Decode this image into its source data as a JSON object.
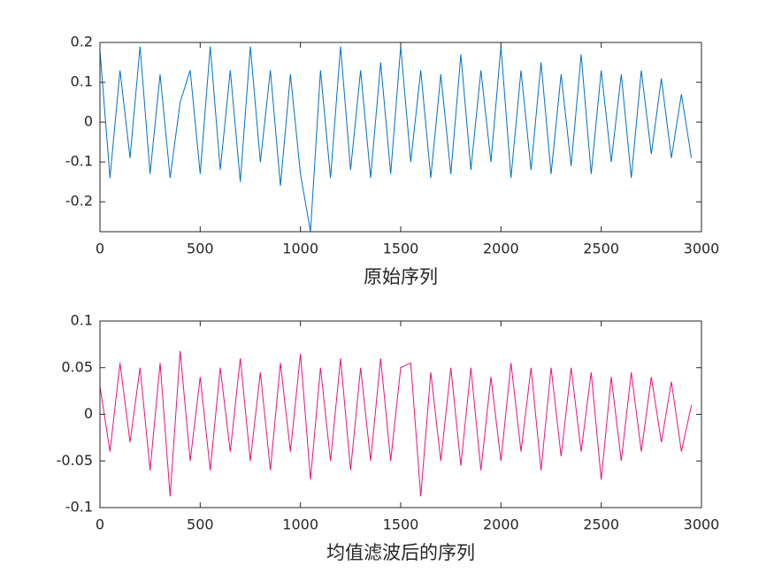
{
  "chart_data": [
    {
      "type": "line",
      "xlabel": "原始序列",
      "x": [
        0,
        50,
        100,
        150,
        200,
        250,
        300,
        350,
        400,
        450,
        500,
        550,
        600,
        650,
        700,
        750,
        800,
        850,
        900,
        950,
        1000,
        1050,
        1100,
        1150,
        1200,
        1250,
        1300,
        1350,
        1400,
        1450,
        1500,
        1550,
        1600,
        1650,
        1700,
        1750,
        1800,
        1850,
        1900,
        1950,
        2000,
        2050,
        2100,
        2150,
        2200,
        2250,
        2300,
        2350,
        2400,
        2450,
        2500,
        2550,
        2600,
        2650,
        2700,
        2750,
        2800,
        2850,
        2900,
        2950
      ],
      "series": [
        {
          "color": "#0072bd",
          "values": [
            0.18,
            -0.14,
            0.13,
            -0.09,
            0.19,
            -0.13,
            0.12,
            -0.14,
            0.05,
            0.13,
            -0.13,
            0.19,
            -0.12,
            0.13,
            -0.15,
            0.19,
            -0.1,
            0.13,
            -0.16,
            0.12,
            -0.13,
            -0.275,
            0.13,
            -0.14,
            0.19,
            -0.12,
            0.13,
            -0.14,
            0.15,
            -0.13,
            0.19,
            -0.1,
            0.13,
            -0.14,
            0.12,
            -0.13,
            0.17,
            -0.12,
            0.13,
            -0.1,
            0.19,
            -0.14,
            0.13,
            -0.12,
            0.15,
            -0.13,
            0.12,
            -0.11,
            0.17,
            -0.13,
            0.13,
            -0.1,
            0.12,
            -0.14,
            0.13,
            -0.08,
            0.11,
            -0.09,
            0.07,
            -0.09
          ]
        }
      ],
      "xlim": [
        0,
        3000
      ],
      "xticks": [
        0,
        500,
        1000,
        1500,
        2000,
        2500,
        3000
      ],
      "ylim": [
        -0.275,
        0.2
      ],
      "yticks": [
        -0.2,
        -0.1,
        0,
        0.1,
        0.2
      ]
    },
    {
      "type": "line",
      "xlabel": "均值滤波后的序列",
      "x": [
        0,
        50,
        100,
        150,
        200,
        250,
        300,
        350,
        400,
        450,
        500,
        550,
        600,
        650,
        700,
        750,
        800,
        850,
        900,
        950,
        1000,
        1050,
        1100,
        1150,
        1200,
        1250,
        1300,
        1350,
        1400,
        1450,
        1500,
        1550,
        1600,
        1650,
        1700,
        1750,
        1800,
        1850,
        1900,
        1950,
        2000,
        2050,
        2100,
        2150,
        2200,
        2250,
        2300,
        2350,
        2400,
        2450,
        2500,
        2550,
        2600,
        2650,
        2700,
        2750,
        2800,
        2850,
        2900,
        2950
      ],
      "series": [
        {
          "color": "#e8117f",
          "values": [
            0.03,
            -0.04,
            0.055,
            -0.03,
            0.05,
            -0.06,
            0.055,
            -0.088,
            0.068,
            -0.05,
            0.04,
            -0.06,
            0.05,
            -0.04,
            0.06,
            -0.05,
            0.045,
            -0.06,
            0.055,
            -0.04,
            0.065,
            -0.07,
            0.05,
            -0.05,
            0.06,
            -0.06,
            0.05,
            -0.05,
            0.06,
            -0.05,
            0.05,
            0.055,
            -0.088,
            0.045,
            -0.05,
            0.05,
            -0.055,
            0.05,
            -0.06,
            0.04,
            -0.05,
            0.055,
            -0.04,
            0.05,
            -0.06,
            0.05,
            -0.045,
            0.05,
            -0.04,
            0.045,
            -0.07,
            0.04,
            -0.05,
            0.045,
            -0.04,
            0.04,
            -0.03,
            0.035,
            -0.04,
            0.01
          ]
        }
      ],
      "xlim": [
        0,
        3000
      ],
      "xticks": [
        0,
        500,
        1000,
        1500,
        2000,
        2500,
        3000
      ],
      "ylim": [
        -0.1,
        0.1
      ],
      "yticks": [
        -0.1,
        -0.05,
        0,
        0.05,
        0.1
      ]
    }
  ]
}
